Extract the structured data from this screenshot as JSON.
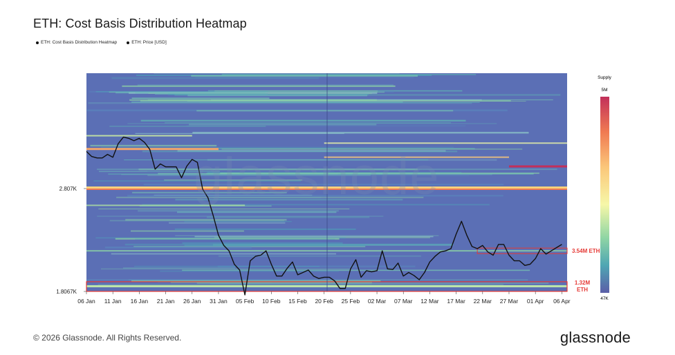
{
  "title": "ETH: Cost Basis Distribution Heatmap",
  "legend": [
    {
      "label": "ETH: Cost Basis Distribution Heatmap"
    },
    {
      "label": "ETH: Price [USD]"
    }
  ],
  "footer": "© 2026 Glassnode. All Rights Reserved.",
  "brand": "glassnode",
  "watermark": "glassnode",
  "colorbar": {
    "title": "Supply",
    "max_label": "5M",
    "min_label": "47K"
  },
  "chart_data": {
    "type": "heatmap",
    "title": "ETH: Cost Basis Distribution Heatmap",
    "xlabel": "",
    "ylabel": "",
    "y_scale": "log",
    "ylim": [
      1806.7,
      4600
    ],
    "yticks": [
      {
        "value": 2807,
        "label": "2.807K"
      },
      {
        "value": 1806.7,
        "label": "1.8067K"
      }
    ],
    "x_range": [
      "2026-01-06",
      "2026-04-07"
    ],
    "x_ticks": [
      "06 Jan",
      "11 Jan",
      "16 Jan",
      "21 Jan",
      "26 Jan",
      "31 Jan",
      "05 Feb",
      "10 Feb",
      "15 Feb",
      "20 Feb",
      "25 Feb",
      "02 Mar",
      "07 Mar",
      "12 Mar",
      "17 Mar",
      "22 Mar",
      "27 Mar",
      "01 Apr",
      "06 Apr"
    ],
    "colors": {
      "low": "#5b6fb5",
      "mid": "#f7f7a6",
      "high": "#c2305a",
      "line": "#111111",
      "highlight": "#e53935"
    },
    "series": [
      {
        "name": "ETH: Price [USD]",
        "x": [
          "2026-01-06",
          "2026-01-07",
          "2026-01-08",
          "2026-01-09",
          "2026-01-10",
          "2026-01-11",
          "2026-01-12",
          "2026-01-13",
          "2026-01-14",
          "2026-01-15",
          "2026-01-16",
          "2026-01-17",
          "2026-01-18",
          "2026-01-19",
          "2026-01-20",
          "2026-01-21",
          "2026-01-22",
          "2026-01-23",
          "2026-01-24",
          "2026-01-25",
          "2026-01-26",
          "2026-01-27",
          "2026-01-28",
          "2026-01-29",
          "2026-01-30",
          "2026-01-31",
          "2026-02-01",
          "2026-02-02",
          "2026-02-03",
          "2026-02-04",
          "2026-02-05",
          "2026-02-06",
          "2026-02-07",
          "2026-02-08",
          "2026-02-09",
          "2026-02-10",
          "2026-02-11",
          "2026-02-12",
          "2026-02-13",
          "2026-02-14",
          "2026-02-15",
          "2026-02-16",
          "2026-02-17",
          "2026-02-18",
          "2026-02-19",
          "2026-02-20",
          "2026-02-21",
          "2026-02-22",
          "2026-02-23",
          "2026-02-24",
          "2026-02-25",
          "2026-02-26",
          "2026-02-27",
          "2026-02-28",
          "2026-03-01",
          "2026-03-02",
          "2026-03-03",
          "2026-03-04",
          "2026-03-05",
          "2026-03-06",
          "2026-03-07",
          "2026-03-08",
          "2026-03-09",
          "2026-03-10",
          "2026-03-11",
          "2026-03-12",
          "2026-03-13",
          "2026-03-14",
          "2026-03-15",
          "2026-03-16",
          "2026-03-17",
          "2026-03-18",
          "2026-03-19",
          "2026-03-20",
          "2026-03-21",
          "2026-03-22",
          "2026-03-23",
          "2026-03-24",
          "2026-03-25",
          "2026-03-26",
          "2026-03-27",
          "2026-03-28",
          "2026-03-29",
          "2026-03-30",
          "2026-03-31",
          "2026-04-01",
          "2026-04-02",
          "2026-04-03",
          "2026-04-04",
          "2026-04-05",
          "2026-04-06"
        ],
        "values": [
          3290,
          3220,
          3200,
          3200,
          3250,
          3210,
          3400,
          3500,
          3480,
          3445,
          3480,
          3420,
          3320,
          3050,
          3120,
          3080,
          3080,
          3080,
          2940,
          3090,
          3180,
          3140,
          2800,
          2700,
          2500,
          2300,
          2200,
          2150,
          2030,
          1980,
          1780,
          2060,
          2100,
          2110,
          2150,
          2030,
          1930,
          1930,
          1995,
          2050,
          1940,
          1960,
          1980,
          1930,
          1910,
          1920,
          1920,
          1890,
          1830,
          1830,
          1990,
          2070,
          1920,
          1975,
          1965,
          1975,
          2150,
          1990,
          1985,
          2040,
          1930,
          1960,
          1935,
          1900,
          1960,
          2050,
          2100,
          2140,
          2150,
          2170,
          2310,
          2440,
          2300,
          2190,
          2170,
          2200,
          2140,
          2110,
          2210,
          2210,
          2110,
          2060,
          2060,
          2020,
          2030,
          2080,
          2170,
          2120,
          2150,
          2180,
          2210
        ]
      }
    ],
    "annotations": [
      {
        "label": "3.54M ETH",
        "price": 2150
      },
      {
        "label": "1.32M ETH",
        "price": 1845
      }
    ]
  }
}
